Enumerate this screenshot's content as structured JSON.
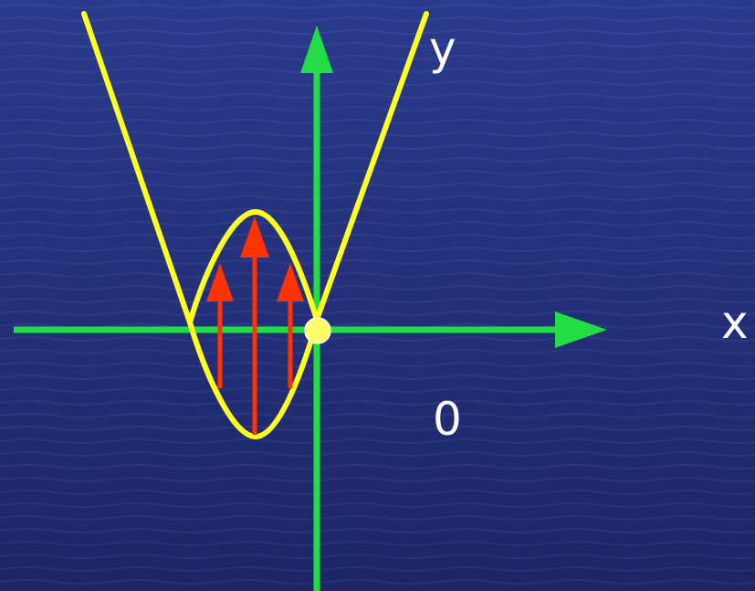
{
  "diagram": {
    "labels": {
      "y_axis": "y",
      "x_axis": "x",
      "origin": "0"
    },
    "colors": {
      "background_top": "#2a3a8c",
      "background_bottom": "#1c2566",
      "axes": "#22dd44",
      "curve": "#ffff22",
      "arrows": "#ff3300",
      "origin_dot": "#ffff66",
      "text": "#ffffff"
    },
    "arrow_count": 3
  }
}
